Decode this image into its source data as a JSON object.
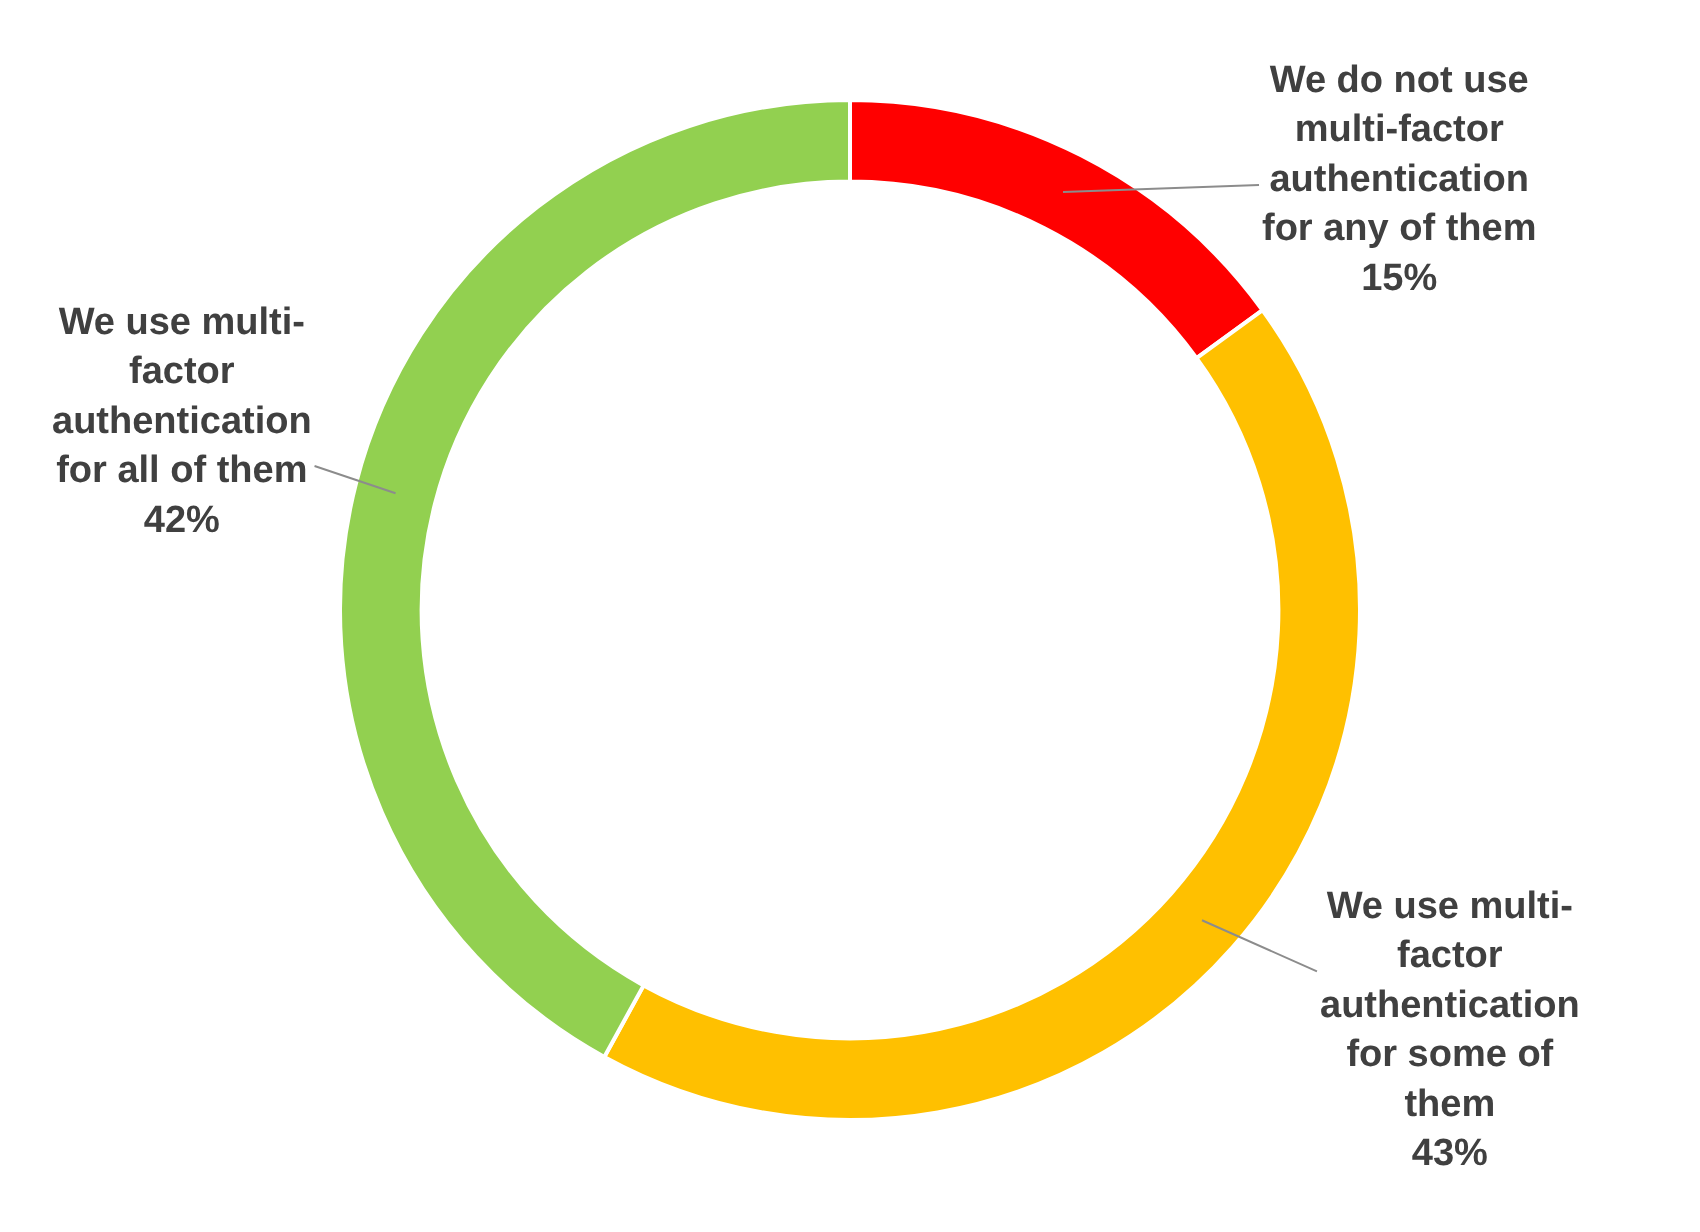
{
  "chart_data": {
    "type": "donut",
    "categories": [
      "We do not use multi-factor authentication for any of them",
      "We use multi-factor authentication for some of them",
      "We use multi-factor authentication for all of them"
    ],
    "values": [
      15,
      43,
      42
    ],
    "colors": [
      "#ff0000",
      "#ffc000",
      "#92d050"
    ],
    "value_labels": [
      "15%",
      "43%",
      "42%"
    ],
    "legend": false
  }
}
